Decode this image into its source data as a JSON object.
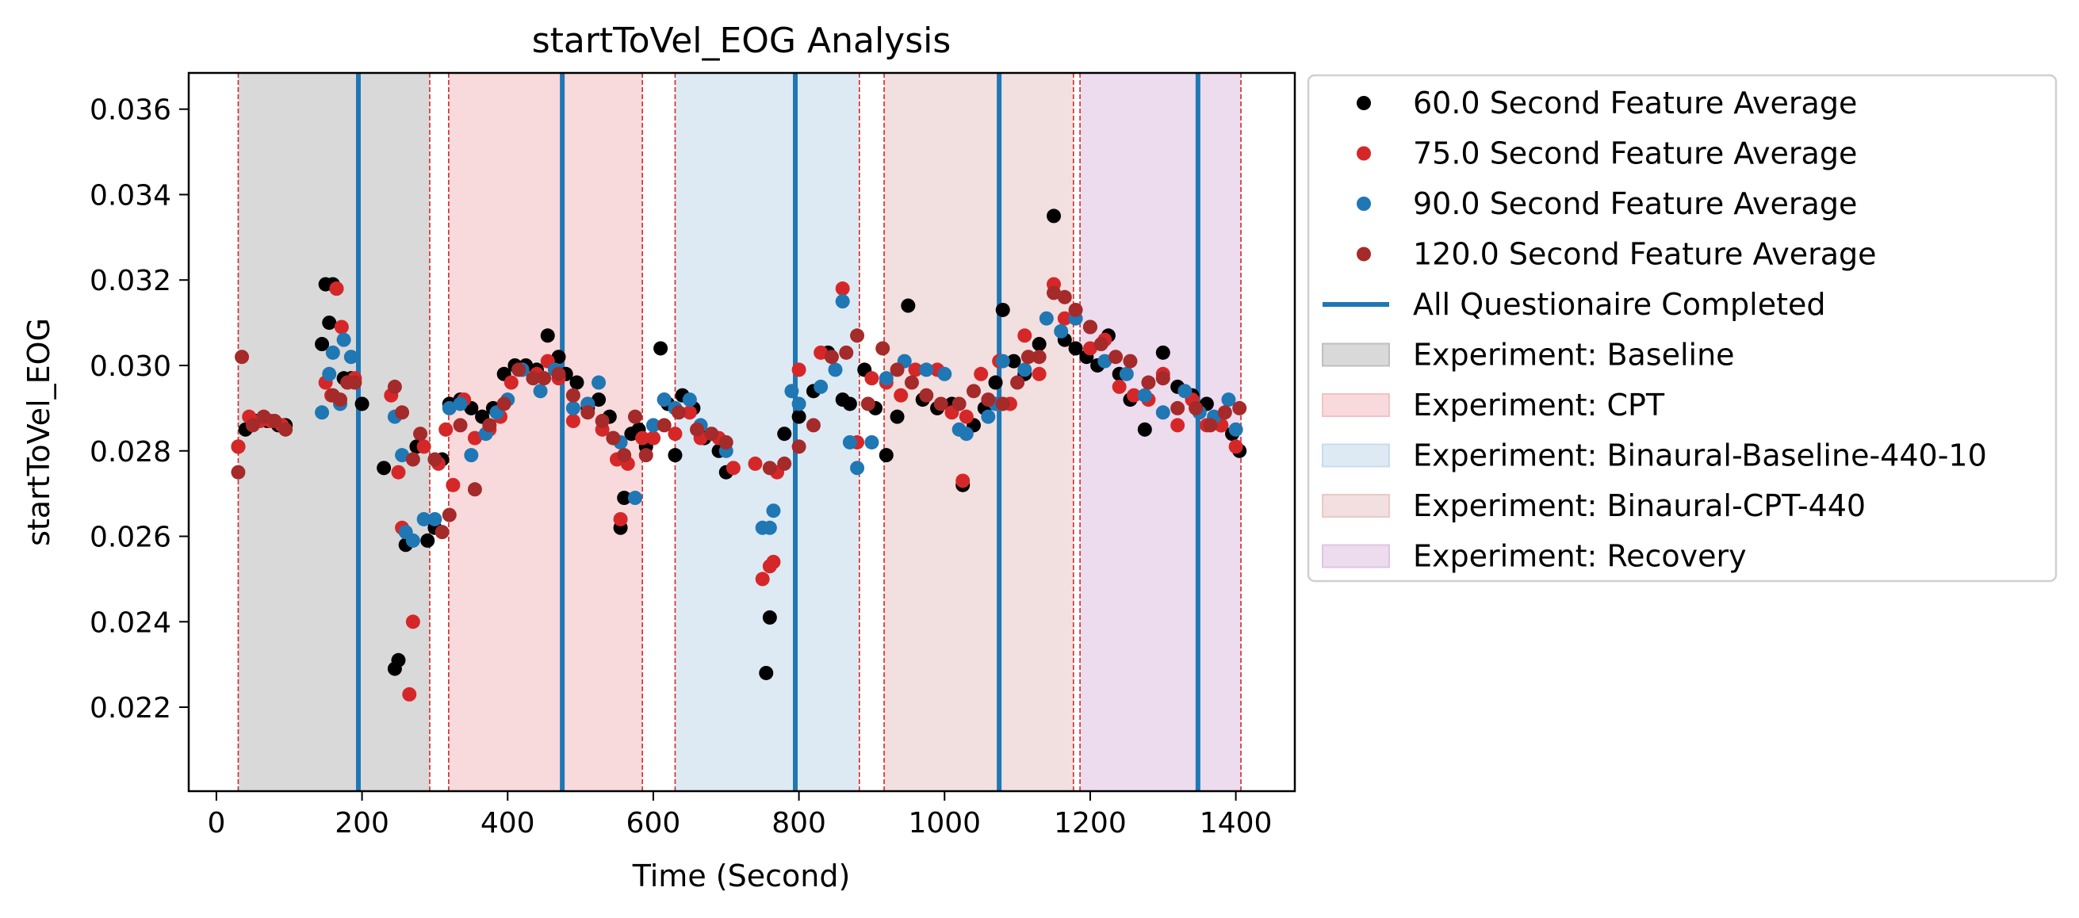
{
  "chart_data": {
    "type": "scatter",
    "title": "startToVel_EOG Analysis",
    "xlabel": "Time (Second)",
    "ylabel": "startToVel_EOG",
    "xlim": [
      -38,
      1481
    ],
    "ylim": [
      0.020034,
      0.036848
    ],
    "xticks": [
      0,
      200,
      400,
      600,
      800,
      1000,
      1200,
      1400
    ],
    "yticks": [
      0.022,
      0.024,
      0.026,
      0.028,
      0.03,
      0.032,
      0.034,
      0.036
    ],
    "yticks_labels": [
      "0.022",
      "0.024",
      "0.026",
      "0.028",
      "0.030",
      "0.032",
      "0.034",
      "0.036"
    ],
    "grid": false,
    "legend_position": "outside-right",
    "regions": [
      {
        "label": "Experiment: Baseline",
        "start": 30,
        "end": 293,
        "color": "#bfbfbf"
      },
      {
        "label": "Experiment: CPT",
        "start": 319,
        "end": 585,
        "color": "#f4c2c5"
      },
      {
        "label": "Experiment: Binaural-Baseline-440-10",
        "start": 630,
        "end": 883,
        "color": "#c6dced"
      },
      {
        "label": "Experiment: Binaural-CPT-440",
        "start": 917,
        "end": 1177,
        "color": "#e9c9c9"
      },
      {
        "label": "Experiment: Recovery",
        "start": 1186,
        "end": 1407,
        "color": "#dfc4e3"
      }
    ],
    "boundary_lines": [
      30,
      293,
      319,
      585,
      630,
      883,
      917,
      1177,
      1186,
      1407
    ],
    "questionnaire_lines": {
      "label": "All Questionaire Completed",
      "x": [
        195,
        475,
        795,
        1075,
        1348
      ],
      "color": "#1f77b4"
    },
    "series": [
      {
        "name": "60.0 Second Feature Average",
        "color": "#000000",
        "x": [
          30,
          40,
          55,
          70,
          85,
          95,
          145,
          150,
          155,
          160,
          165,
          175,
          185,
          200,
          230,
          245,
          250,
          260,
          275,
          290,
          300,
          310,
          320,
          335,
          350,
          365,
          380,
          395,
          410,
          425,
          440,
          455,
          470,
          480,
          495,
          510,
          525,
          540,
          555,
          560,
          570,
          580,
          590,
          600,
          610,
          620,
          630,
          640,
          655,
          670,
          690,
          700,
          755,
          760,
          780,
          800,
          820,
          840,
          860,
          870,
          890,
          905,
          920,
          935,
          950,
          970,
          990,
          1010,
          1025,
          1040,
          1055,
          1070,
          1080,
          1095,
          1110,
          1130,
          1150,
          1165,
          1180,
          1195,
          1210,
          1225,
          1240,
          1255,
          1275,
          1300,
          1320,
          1340,
          1360,
          1380,
          1395,
          1405
        ],
        "y": [
          0.0281,
          0.0285,
          0.0287,
          0.0287,
          0.0286,
          0.0286,
          0.0305,
          0.0319,
          0.031,
          0.0319,
          0.0318,
          0.0297,
          0.0297,
          0.0291,
          0.0276,
          0.0229,
          0.0231,
          0.0258,
          0.0281,
          0.0259,
          0.0262,
          0.0278,
          0.0291,
          0.0292,
          0.029,
          0.0288,
          0.029,
          0.0298,
          0.03,
          0.03,
          0.0299,
          0.0307,
          0.0302,
          0.0298,
          0.0296,
          0.029,
          0.0292,
          0.0288,
          0.0262,
          0.0269,
          0.0284,
          0.0285,
          0.0281,
          0.0283,
          0.0304,
          0.0291,
          0.0279,
          0.0293,
          0.029,
          0.0283,
          0.028,
          0.0275,
          0.0228,
          0.0241,
          0.0284,
          0.0288,
          0.0294,
          0.0303,
          0.0292,
          0.0291,
          0.0299,
          0.029,
          0.0279,
          0.0288,
          0.0314,
          0.0292,
          0.029,
          0.0291,
          0.0272,
          0.0286,
          0.029,
          0.0296,
          0.0313,
          0.0301,
          0.0298,
          0.0305,
          0.0335,
          0.0306,
          0.0304,
          0.0302,
          0.03,
          0.0307,
          0.0298,
          0.0292,
          0.0285,
          0.0303,
          0.0295,
          0.0293,
          0.0291,
          0.0286,
          0.0284,
          0.028
        ]
      },
      {
        "name": "75.0 Second Feature Average",
        "color": "#d62728",
        "x": [
          30,
          45,
          60,
          75,
          90,
          150,
          158,
          165,
          172,
          180,
          190,
          240,
          250,
          255,
          265,
          270,
          285,
          305,
          315,
          325,
          340,
          355,
          375,
          390,
          405,
          420,
          440,
          455,
          470,
          490,
          510,
          530,
          550,
          555,
          565,
          585,
          600,
          615,
          630,
          650,
          665,
          690,
          710,
          740,
          750,
          760,
          765,
          770,
          800,
          830,
          860,
          880,
          900,
          920,
          940,
          960,
          990,
          1010,
          1025,
          1030,
          1050,
          1075,
          1090,
          1110,
          1130,
          1150,
          1165,
          1200,
          1220,
          1240,
          1260,
          1280,
          1300,
          1320,
          1340,
          1360,
          1380,
          1400
        ],
        "y": [
          0.0281,
          0.0288,
          0.0287,
          0.0287,
          0.0286,
          0.0296,
          0.0293,
          0.0318,
          0.0309,
          0.0296,
          0.0297,
          0.0293,
          0.0275,
          0.0262,
          0.0223,
          0.024,
          0.0281,
          0.0277,
          0.0285,
          0.0272,
          0.0292,
          0.0283,
          0.0285,
          0.0288,
          0.0296,
          0.0299,
          0.0298,
          0.0301,
          0.0297,
          0.0287,
          0.0291,
          0.0285,
          0.0278,
          0.0264,
          0.0277,
          0.0283,
          0.0283,
          0.0292,
          0.0284,
          0.0289,
          0.0283,
          0.0283,
          0.0276,
          0.0277,
          0.025,
          0.0253,
          0.0254,
          0.0275,
          0.0299,
          0.0303,
          0.0318,
          0.0282,
          0.0297,
          0.0296,
          0.0293,
          0.0299,
          0.0299,
          0.0289,
          0.0273,
          0.0288,
          0.0298,
          0.0301,
          0.0291,
          0.0307,
          0.0298,
          0.0319,
          0.0311,
          0.0304,
          0.0306,
          0.0295,
          0.0293,
          0.0292,
          0.0298,
          0.0286,
          0.0292,
          0.0286,
          0.0286,
          0.0281
        ]
      },
      {
        "name": "90.0 Second Feature Average",
        "color": "#1f77b4",
        "x": [
          145,
          155,
          160,
          170,
          175,
          185,
          245,
          255,
          260,
          270,
          285,
          300,
          320,
          335,
          350,
          370,
          385,
          400,
          420,
          445,
          465,
          490,
          510,
          525,
          545,
          555,
          575,
          600,
          615,
          630,
          650,
          665,
          700,
          750,
          760,
          765,
          790,
          800,
          830,
          850,
          860,
          870,
          880,
          900,
          920,
          945,
          975,
          1000,
          1020,
          1030,
          1060,
          1070,
          1080,
          1110,
          1140,
          1160,
          1180,
          1200,
          1220,
          1250,
          1275,
          1300,
          1330,
          1350,
          1370,
          1390,
          1400
        ],
        "y": [
          0.0289,
          0.0298,
          0.0303,
          0.0291,
          0.0306,
          0.0302,
          0.0288,
          0.0279,
          0.0261,
          0.0259,
          0.0264,
          0.0264,
          0.029,
          0.0291,
          0.0279,
          0.0284,
          0.0289,
          0.0292,
          0.0299,
          0.0294,
          0.0299,
          0.029,
          0.0291,
          0.0296,
          0.0283,
          0.0282,
          0.0269,
          0.0286,
          0.0292,
          0.029,
          0.0292,
          0.0286,
          0.028,
          0.0262,
          0.0262,
          0.0266,
          0.0294,
          0.0291,
          0.0295,
          0.0299,
          0.0315,
          0.0282,
          0.0276,
          0.0282,
          0.0297,
          0.0301,
          0.0299,
          0.0298,
          0.0285,
          0.0284,
          0.0288,
          0.0291,
          0.0301,
          0.0299,
          0.0311,
          0.0308,
          0.0311,
          0.0309,
          0.0301,
          0.0298,
          0.0293,
          0.0289,
          0.0294,
          0.0289,
          0.0288,
          0.0292,
          0.0285
        ]
      },
      {
        "name": "120.0 Second Feature Average",
        "color": "#a52a2a",
        "x": [
          30,
          35,
          50,
          65,
          80,
          95,
          160,
          170,
          180,
          190,
          245,
          255,
          270,
          280,
          300,
          310,
          320,
          335,
          355,
          375,
          395,
          415,
          435,
          450,
          470,
          490,
          510,
          530,
          545,
          560,
          575,
          590,
          615,
          635,
          660,
          680,
          700,
          760,
          780,
          800,
          820,
          845,
          865,
          880,
          895,
          915,
          935,
          955,
          975,
          995,
          1020,
          1040,
          1060,
          1080,
          1100,
          1115,
          1130,
          1150,
          1165,
          1180,
          1200,
          1215,
          1235,
          1255,
          1280,
          1300,
          1320,
          1345,
          1365,
          1385,
          1405
        ],
        "y": [
          0.0275,
          0.0302,
          0.0286,
          0.0288,
          0.0287,
          0.0285,
          0.0293,
          0.0292,
          0.0296,
          0.0296,
          0.0295,
          0.0289,
          0.0278,
          0.0284,
          0.0278,
          0.0261,
          0.0265,
          0.0286,
          0.0271,
          0.0286,
          0.0291,
          0.0299,
          0.0297,
          0.0297,
          0.0298,
          0.0293,
          0.0289,
          0.0287,
          0.0283,
          0.0279,
          0.0288,
          0.0279,
          0.0286,
          0.0289,
          0.0285,
          0.0284,
          0.0282,
          0.0276,
          0.0277,
          0.0281,
          0.0286,
          0.0302,
          0.0303,
          0.0307,
          0.0291,
          0.0304,
          0.0299,
          0.0296,
          0.0293,
          0.0291,
          0.0291,
          0.0294,
          0.0292,
          0.0291,
          0.0296,
          0.0302,
          0.0302,
          0.0317,
          0.0316,
          0.0313,
          0.0309,
          0.0305,
          0.0302,
          0.0301,
          0.0296,
          0.0297,
          0.029,
          0.029,
          0.0286,
          0.0289,
          0.029
        ]
      }
    ],
    "legend": [
      {
        "label": "60.0 Second Feature Average",
        "kind": "marker",
        "color": "#000000"
      },
      {
        "label": "75.0 Second Feature Average",
        "kind": "marker",
        "color": "#d62728"
      },
      {
        "label": "90.0 Second Feature Average",
        "kind": "marker",
        "color": "#1f77b4"
      },
      {
        "label": "120.0 Second Feature Average",
        "kind": "marker",
        "color": "#a52a2a"
      },
      {
        "label": "All Questionaire Completed",
        "kind": "line",
        "color": "#1f77b4"
      },
      {
        "label": "Experiment: Baseline",
        "kind": "patch",
        "color": "#bfbfbf"
      },
      {
        "label": "Experiment: CPT",
        "kind": "patch",
        "color": "#f4c2c5"
      },
      {
        "label": "Experiment: Binaural-Baseline-440-10",
        "kind": "patch",
        "color": "#c6dced"
      },
      {
        "label": "Experiment: Binaural-CPT-440",
        "kind": "patch",
        "color": "#e9c9c9"
      },
      {
        "label": "Experiment: Recovery",
        "kind": "patch",
        "color": "#dfc4e3"
      }
    ]
  }
}
